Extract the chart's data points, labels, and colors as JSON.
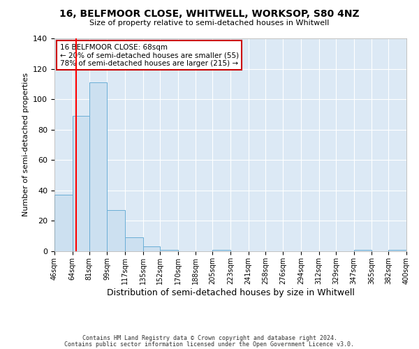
{
  "title1": "16, BELFMOOR CLOSE, WHITWELL, WORKSOP, S80 4NZ",
  "title2": "Size of property relative to semi-detached houses in Whitwell",
  "xlabel": "Distribution of semi-detached houses by size in Whitwell",
  "ylabel": "Number of semi-detached properties",
  "bins": [
    46,
    64,
    81,
    99,
    117,
    135,
    152,
    170,
    188,
    205,
    223,
    241,
    258,
    276,
    294,
    312,
    329,
    347,
    365,
    382,
    400
  ],
  "counts": [
    37,
    89,
    111,
    27,
    9,
    3,
    1,
    0,
    0,
    1,
    0,
    0,
    0,
    0,
    0,
    0,
    0,
    1,
    0,
    1
  ],
  "bar_color": "#cce0f0",
  "bar_edge_color": "#6baed6",
  "red_line_x": 68,
  "ylim": [
    0,
    140
  ],
  "yticks": [
    0,
    20,
    40,
    60,
    80,
    100,
    120,
    140
  ],
  "annotation_title": "16 BELFMOOR CLOSE: 68sqm",
  "annotation_line1": "← 20% of semi-detached houses are smaller (55)",
  "annotation_line2": "78% of semi-detached houses are larger (215) →",
  "annotation_box_color": "#ffffff",
  "annotation_box_edge": "#cc0000",
  "footer1": "Contains HM Land Registry data © Crown copyright and database right 2024.",
  "footer2": "Contains public sector information licensed under the Open Government Licence v3.0.",
  "fig_facecolor": "#ffffff",
  "plot_facecolor": "#dce9f5"
}
